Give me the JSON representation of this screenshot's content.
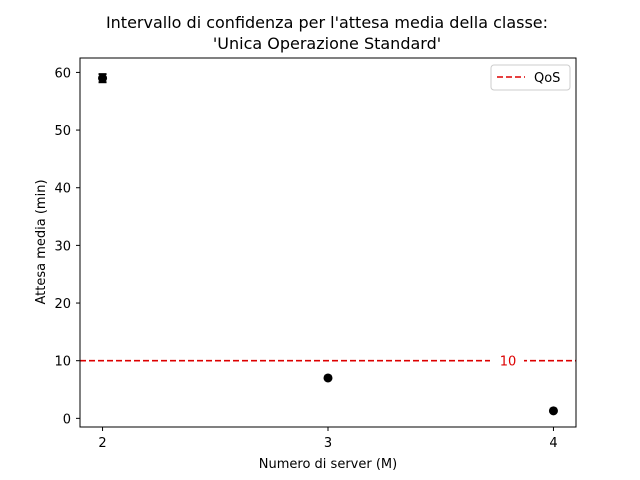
{
  "chart_data": {
    "type": "scatter",
    "title_lines": [
      "Intervallo di confidenza per l'attesa media della classe:",
      "'Unica Operazione Standard'"
    ],
    "xlabel": "Numero di server (M)",
    "ylabel": "Attesa media (min)",
    "x": [
      2,
      3,
      4
    ],
    "y": [
      59.0,
      7.0,
      1.3
    ],
    "ci": [
      [
        58.3,
        59.7
      ],
      [
        6.8,
        7.2
      ],
      [
        1.2,
        1.4
      ]
    ],
    "xlim": [
      1.9,
      4.1
    ],
    "ylim": [
      -1.5,
      62.5
    ],
    "xticks": [
      2,
      3,
      4
    ],
    "yticks": [
      0,
      10,
      20,
      30,
      40,
      50,
      60
    ],
    "qos_line": {
      "value": 10,
      "label": "10",
      "color": "#dd0000"
    },
    "legend": {
      "entries": [
        "QoS"
      ],
      "position": "top-right"
    },
    "grid": false,
    "point_color": "#000000"
  }
}
